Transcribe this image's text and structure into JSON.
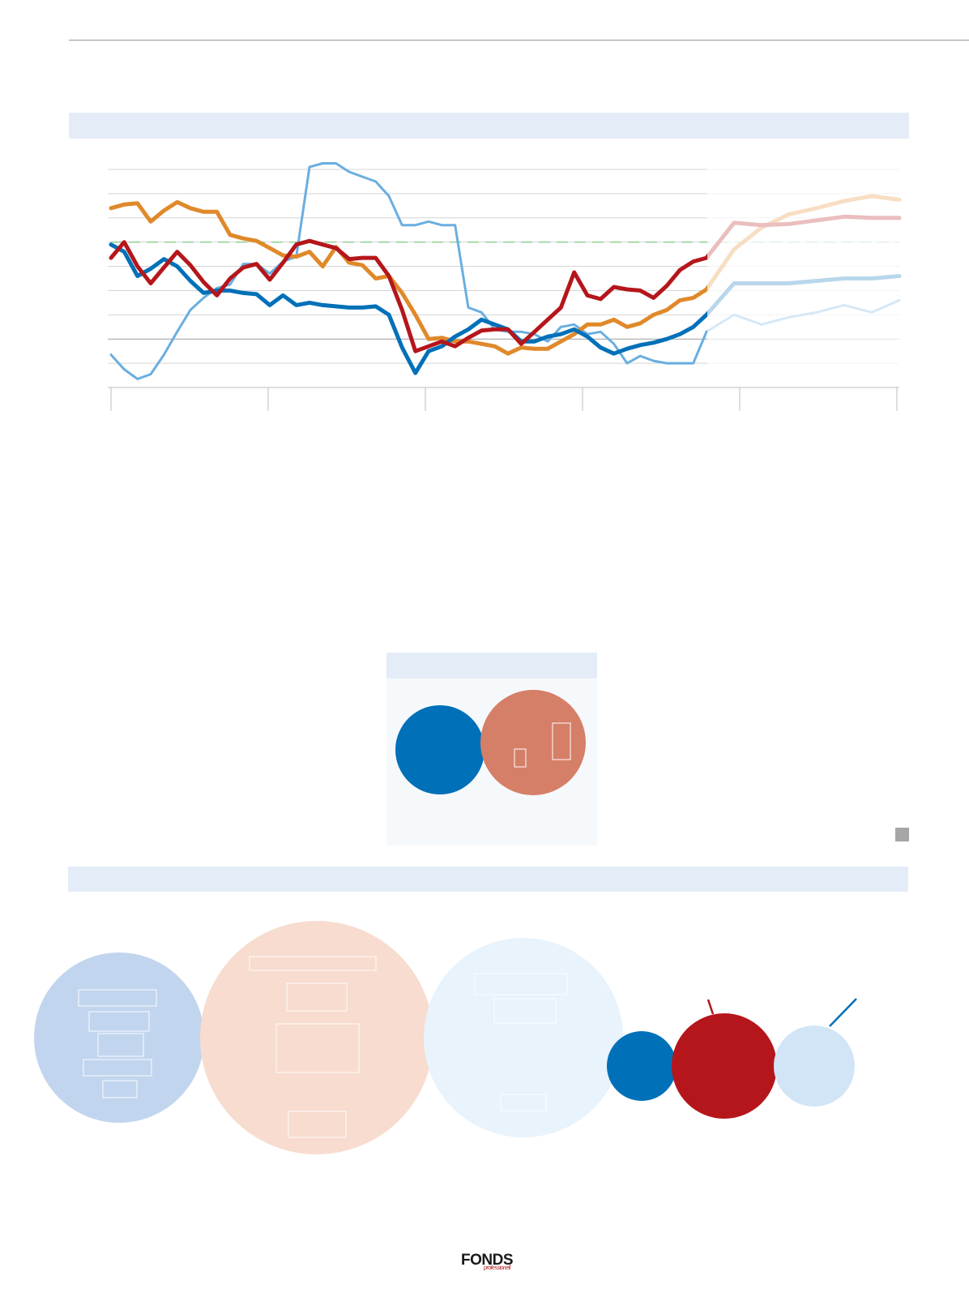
{
  "brand": {
    "logo_text": "FONDS",
    "logo_sub": "professionell"
  },
  "colors": {
    "dark_blue": "#0070b8",
    "light_blue": "#6aaee0",
    "orange": "#e0892a",
    "red": "#b5161b",
    "reference_line": "#8fd08f",
    "band": "#e4edf7"
  },
  "chart_data": [
    {
      "type": "line",
      "title": "",
      "xlabel": "",
      "ylabel": "",
      "x": [
        0,
        1,
        2,
        3,
        4,
        5,
        6,
        7,
        8,
        9,
        10,
        11,
        12,
        13,
        14,
        15,
        16,
        17,
        18,
        19,
        20,
        21,
        22,
        23,
        24,
        25,
        26,
        27,
        28,
        29,
        30,
        31,
        32,
        33,
        34,
        35,
        36,
        37,
        38,
        39,
        40,
        41,
        42,
        43,
        44,
        45
      ],
      "ylim": [
        0,
        9
      ],
      "grid": true,
      "reference_value": 6,
      "forecast_start_index": 45,
      "series": [
        {
          "color": "#6aaee0",
          "values": [
            1.35,
            0.75,
            0.35,
            0.55,
            1.35,
            2.3,
            3.2,
            3.7,
            4.1,
            4.25,
            5.1,
            5.1,
            4.7,
            5.2,
            5.4,
            9.1,
            9.25,
            9.25,
            8.9,
            8.7,
            8.5,
            7.9,
            6.7,
            6.7,
            6.85,
            6.7,
            6.7,
            3.3,
            3.1,
            2.4,
            2.3,
            2.3,
            2.2,
            1.9,
            2.5,
            2.6,
            2.2,
            2.3,
            1.8,
            1.0,
            1.3,
            1.1,
            1.0,
            1.0,
            1.0,
            2.3
          ],
          "forecast": [
            3.0,
            2.6,
            2.9,
            3.1,
            3.4,
            3.1,
            3.6
          ]
        },
        {
          "color": "#e0892a",
          "values": [
            7.4,
            7.55,
            7.6,
            6.85,
            7.3,
            7.65,
            7.4,
            7.25,
            7.25,
            6.3,
            6.15,
            6.05,
            5.75,
            5.45,
            5.4,
            5.6,
            5.0,
            5.8,
            5.15,
            5.05,
            4.5,
            4.6,
            3.9,
            3.0,
            2.0,
            2.05,
            1.9,
            1.9,
            1.8,
            1.7,
            1.4,
            1.65,
            1.6,
            1.6,
            1.9,
            2.2,
            2.6,
            2.6,
            2.8,
            2.5,
            2.65,
            3.0,
            3.2,
            3.6,
            3.7,
            4.05
          ],
          "forecast": [
            5.7,
            6.6,
            7.15,
            7.4,
            7.7,
            7.9,
            7.75
          ]
        },
        {
          "color": "#0070b8",
          "values": [
            5.9,
            5.6,
            4.6,
            4.9,
            5.3,
            5.0,
            4.4,
            3.9,
            4.0,
            4.0,
            3.9,
            3.85,
            3.4,
            3.8,
            3.4,
            3.5,
            3.4,
            3.35,
            3.3,
            3.3,
            3.35,
            3.0,
            1.65,
            0.6,
            1.5,
            1.7,
            2.1,
            2.4,
            2.8,
            2.6,
            2.4,
            1.9,
            1.9,
            2.1,
            2.2,
            2.4,
            2.1,
            1.65,
            1.4,
            1.6,
            1.75,
            1.85,
            2.0,
            2.2,
            2.5,
            3.0
          ],
          "forecast": [
            4.3,
            4.3,
            4.3,
            4.4,
            4.5,
            4.5,
            4.6
          ]
        },
        {
          "color": "#b5161b",
          "values": [
            5.35,
            6.0,
            5.0,
            4.3,
            4.95,
            5.6,
            5.05,
            4.35,
            3.8,
            4.5,
            4.95,
            5.1,
            4.45,
            5.15,
            5.9,
            6.05,
            5.9,
            5.75,
            5.3,
            5.35,
            5.35,
            4.6,
            3.2,
            1.5,
            1.7,
            1.9,
            1.7,
            2.05,
            2.35,
            2.4,
            2.4,
            1.8,
            2.3,
            2.8,
            3.3,
            4.75,
            3.8,
            3.65,
            4.15,
            4.05,
            4.0,
            3.7,
            4.2,
            4.85,
            5.2,
            5.35
          ],
          "forecast": [
            6.8,
            6.7,
            6.75,
            6.9,
            7.05,
            7.0,
            7.0
          ]
        }
      ]
    },
    {
      "type": "bubble",
      "title": "",
      "values": [
        110,
        130
      ]
    },
    {
      "type": "bubble",
      "title": "",
      "values": [
        210,
        288,
        246,
        86,
        130,
        100
      ]
    }
  ]
}
